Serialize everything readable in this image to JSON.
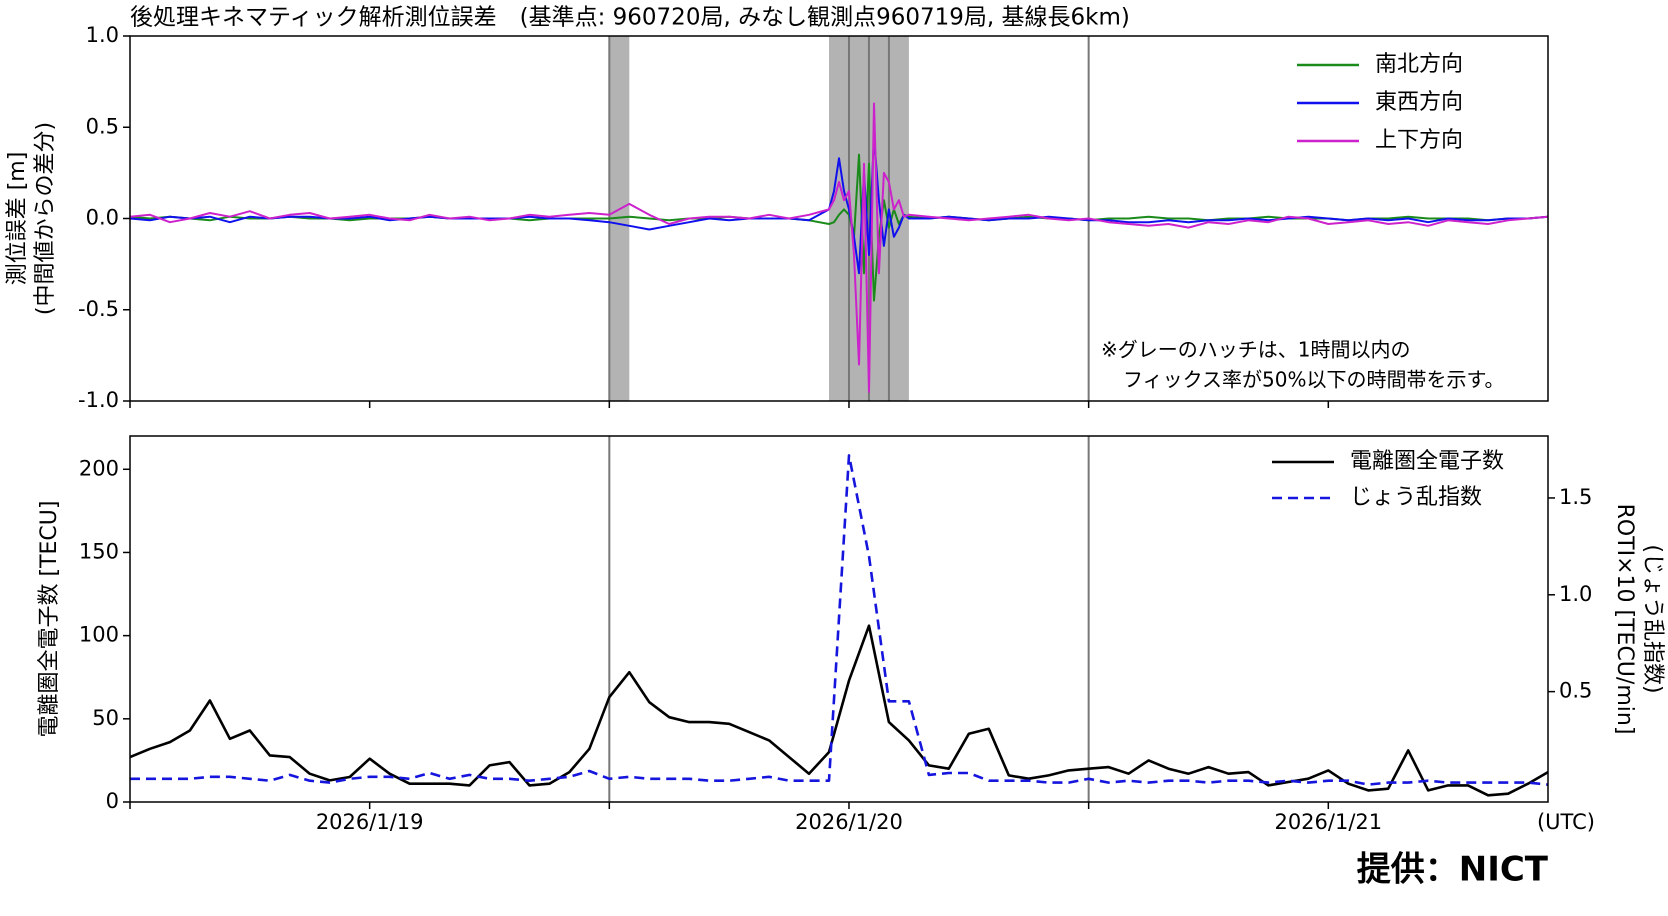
{
  "chart_data": [
    {
      "type": "line",
      "title": "後処理キネマティック解析測位誤差　(基準点: 960720局, みなし観測点960719局, 基線長6km)",
      "ylabel": [
        "測位誤差 [m]",
        "(中間値からの差分)"
      ],
      "annotation": [
        "※グレーのハッチは、1時間以内の",
        "フィックス率が50%以下の時間帯を示す。"
      ],
      "xlim": [
        0,
        71
      ],
      "xticks": [
        0,
        12,
        24,
        36,
        48,
        60
      ],
      "xticklabels": false,
      "ylim": [
        -1,
        1
      ],
      "yticks": [
        {
          "value": -1,
          "label": "-1.0"
        },
        {
          "value": -0.5,
          "label": "-0.5"
        },
        {
          "value": 0,
          "label": "0.0"
        },
        {
          "value": 0.5,
          "label": "0.5"
        },
        {
          "value": 1,
          "label": "1.0"
        }
      ],
      "shaded": [
        [
          24,
          25
        ],
        [
          35,
          39
        ]
      ],
      "vlines": [
        24,
        36,
        37,
        38,
        48
      ],
      "legend": "upper right",
      "x": [
        0,
        1,
        2,
        3,
        4,
        5,
        6,
        7,
        8,
        9,
        10,
        11,
        12,
        13,
        14,
        15,
        16,
        17,
        18,
        19,
        20,
        21,
        22,
        23,
        24,
        25,
        26,
        27,
        28,
        29,
        30,
        31,
        32,
        33,
        34,
        35,
        35.25,
        35.5,
        35.75,
        36,
        36.25,
        36.5,
        36.75,
        37,
        37.25,
        37.5,
        37.75,
        38,
        38.25,
        38.5,
        38.75,
        39,
        40,
        41,
        42,
        43,
        44,
        45,
        46,
        47,
        48,
        49,
        50,
        51,
        52,
        53,
        54,
        55,
        56,
        57,
        58,
        59,
        60,
        61,
        62,
        63,
        64,
        65,
        66,
        67,
        68,
        69,
        70,
        71
      ],
      "series": [
        {
          "name": "南北方向",
          "color": "#1a8a1a",
          "values": [
            0.01,
            0,
            0.01,
            0,
            -0.01,
            0.01,
            0,
            0,
            0.01,
            0,
            0,
            -0.01,
            0,
            0,
            0,
            0.01,
            0,
            0,
            0,
            0,
            -0.01,
            0,
            0,
            0,
            0,
            0.01,
            0,
            -0.01,
            0,
            0,
            0.01,
            0,
            0,
            0,
            -0.01,
            -0.03,
            -0.02,
            0.02,
            0.05,
            0.02,
            -0.1,
            0.35,
            -0.3,
            0.3,
            -0.45,
            -0.1,
            0.1,
            -0.05,
            0.05,
            -0.03,
            0.02,
            0.01,
            0,
            0.01,
            0,
            -0.01,
            0,
            0.01,
            0,
            0,
            -0.01,
            0,
            0,
            0.01,
            0,
            0,
            -0.01,
            0,
            0,
            0.01,
            0,
            0,
            0,
            -0.01,
            0,
            0,
            0.01,
            0,
            0,
            0,
            -0.01,
            0,
            0,
            0.01
          ]
        },
        {
          "name": "東西方向",
          "color": "#1010ee",
          "values": [
            0,
            -0.01,
            0.01,
            0,
            0.01,
            -0.02,
            0.01,
            0,
            0.01,
            0.01,
            0,
            0,
            0.01,
            -0.01,
            0,
            0.01,
            0,
            0,
            0,
            0,
            0.01,
            0,
            0,
            -0.01,
            -0.02,
            -0.04,
            -0.06,
            -0.04,
            -0.02,
            0,
            -0.01,
            0,
            0,
            0,
            -0.01,
            0.05,
            0.15,
            0.33,
            0.15,
            0.05,
            -0.1,
            -0.3,
            0.25,
            -0.2,
            0.45,
            0.1,
            -0.15,
            0.05,
            -0.1,
            -0.05,
            0.02,
            0,
            0,
            0.01,
            0,
            -0.01,
            0,
            0,
            0.01,
            0,
            -0.01,
            -0.01,
            -0.02,
            -0.02,
            -0.01,
            -0.02,
            -0.01,
            -0.01,
            0,
            -0.01,
            0,
            0.01,
            0,
            -0.01,
            0,
            -0.01,
            0,
            -0.02,
            0,
            -0.01,
            -0.01,
            0,
            0,
            0.01
          ]
        },
        {
          "name": "上下方向",
          "color": "#cc22cc",
          "values": [
            0.01,
            0.02,
            -0.02,
            0,
            0.03,
            0.01,
            0.04,
            0,
            0.02,
            0.03,
            0,
            0.01,
            0.02,
            0,
            -0.01,
            0.02,
            0,
            0.01,
            -0.01,
            0,
            0.02,
            0.01,
            0.02,
            0.03,
            0.02,
            0.08,
            0.02,
            -0.03,
            0,
            0.01,
            0.01,
            0,
            0.02,
            0,
            0.02,
            0.05,
            0.1,
            0.2,
            0.1,
            0.15,
            -0.2,
            -0.8,
            0.3,
            -0.95,
            0.63,
            -0.3,
            0.25,
            0.2,
            0.05,
            0.1,
            0.01,
            0.02,
            0.01,
            0,
            -0.01,
            0,
            0.01,
            0.02,
            0,
            -0.01,
            0,
            -0.02,
            -0.03,
            -0.04,
            -0.03,
            -0.05,
            -0.02,
            -0.03,
            -0.01,
            -0.02,
            0.01,
            0,
            -0.03,
            -0.02,
            -0.01,
            -0.03,
            -0.02,
            -0.04,
            -0.01,
            -0.02,
            -0.03,
            -0.01,
            0,
            0.01
          ]
        }
      ]
    },
    {
      "type": "line",
      "ylabel": [
        "電離圏全電子数 [TECU]"
      ],
      "y2label": [
        "ROTI×10 [TECU/min]",
        "(じょう乱指数)"
      ],
      "xlabel": "(UTC)",
      "xlim": [
        0,
        71
      ],
      "xticks": [
        {
          "value": 12,
          "label": "2026/1/19"
        },
        {
          "value": 36,
          "label": "2026/1/20"
        },
        {
          "value": 60,
          "label": "2026/1/21"
        }
      ],
      "minor_xticks": [
        0,
        24,
        48
      ],
      "ylim": [
        0,
        220
      ],
      "yticks": [
        0,
        50,
        100,
        150,
        200
      ],
      "y2lim": [
        -0.07,
        1.82
      ],
      "y2ticks": [
        0.5,
        {
          "value": 1,
          "label": "1.0"
        },
        1.5
      ],
      "vlines": [
        24,
        48
      ],
      "legend": "upper right",
      "x": [
        0,
        1,
        2,
        3,
        4,
        5,
        6,
        7,
        8,
        9,
        10,
        11,
        12,
        13,
        14,
        15,
        16,
        17,
        18,
        19,
        20,
        21,
        22,
        23,
        24,
        25,
        26,
        27,
        28,
        29,
        30,
        31,
        32,
        33,
        34,
        35,
        36,
        37,
        38,
        39,
        40,
        41,
        42,
        43,
        44,
        45,
        46,
        47,
        48,
        49,
        50,
        51,
        52,
        53,
        54,
        55,
        56,
        57,
        58,
        59,
        60,
        61,
        62,
        63,
        64,
        65,
        66,
        67,
        68,
        69,
        70,
        71
      ],
      "series": [
        {
          "name": "電離圏全電子数",
          "color": "#000000",
          "linestyle": "solid",
          "values": [
            27,
            32,
            36,
            43,
            61,
            38,
            43,
            28,
            27,
            17,
            13,
            15,
            26,
            17,
            11,
            11,
            11,
            10,
            22,
            24,
            10,
            11,
            18,
            32,
            63,
            78,
            60,
            51,
            48,
            48,
            47,
            42,
            37,
            27,
            17,
            30,
            73,
            106,
            48,
            37,
            22,
            20,
            41,
            44,
            16,
            14,
            16,
            19,
            20,
            21,
            17,
            25,
            20,
            17,
            21,
            17,
            18,
            10,
            12,
            14,
            19,
            11,
            7,
            8,
            31,
            7,
            10,
            10,
            4,
            5,
            11,
            18
          ]
        },
        {
          "name": "じょう乱指数",
          "color": "#1515dd",
          "linestyle": "dashed",
          "axis": "y2",
          "values": [
            0.05,
            0.05,
            0.05,
            0.05,
            0.06,
            0.06,
            0.05,
            0.04,
            0.07,
            0.04,
            0.03,
            0.05,
            0.06,
            0.06,
            0.05,
            0.08,
            0.05,
            0.07,
            0.05,
            0.05,
            0.04,
            0.05,
            0.06,
            0.09,
            0.05,
            0.06,
            0.05,
            0.05,
            0.05,
            0.04,
            0.04,
            0.05,
            0.06,
            0.04,
            0.04,
            0.04,
            1.72,
            1.2,
            0.45,
            0.45,
            0.07,
            0.08,
            0.08,
            0.04,
            0.04,
            0.04,
            0.03,
            0.03,
            0.05,
            0.03,
            0.04,
            0.03,
            0.04,
            0.04,
            0.03,
            0.04,
            0.04,
            0.03,
            0.04,
            0.03,
            0.04,
            0.04,
            0.02,
            0.03,
            0.03,
            0.04,
            0.03,
            0.03,
            0.03,
            0.03,
            0.03,
            0.02
          ]
        }
      ]
    }
  ],
  "credit": "提供：NICT"
}
